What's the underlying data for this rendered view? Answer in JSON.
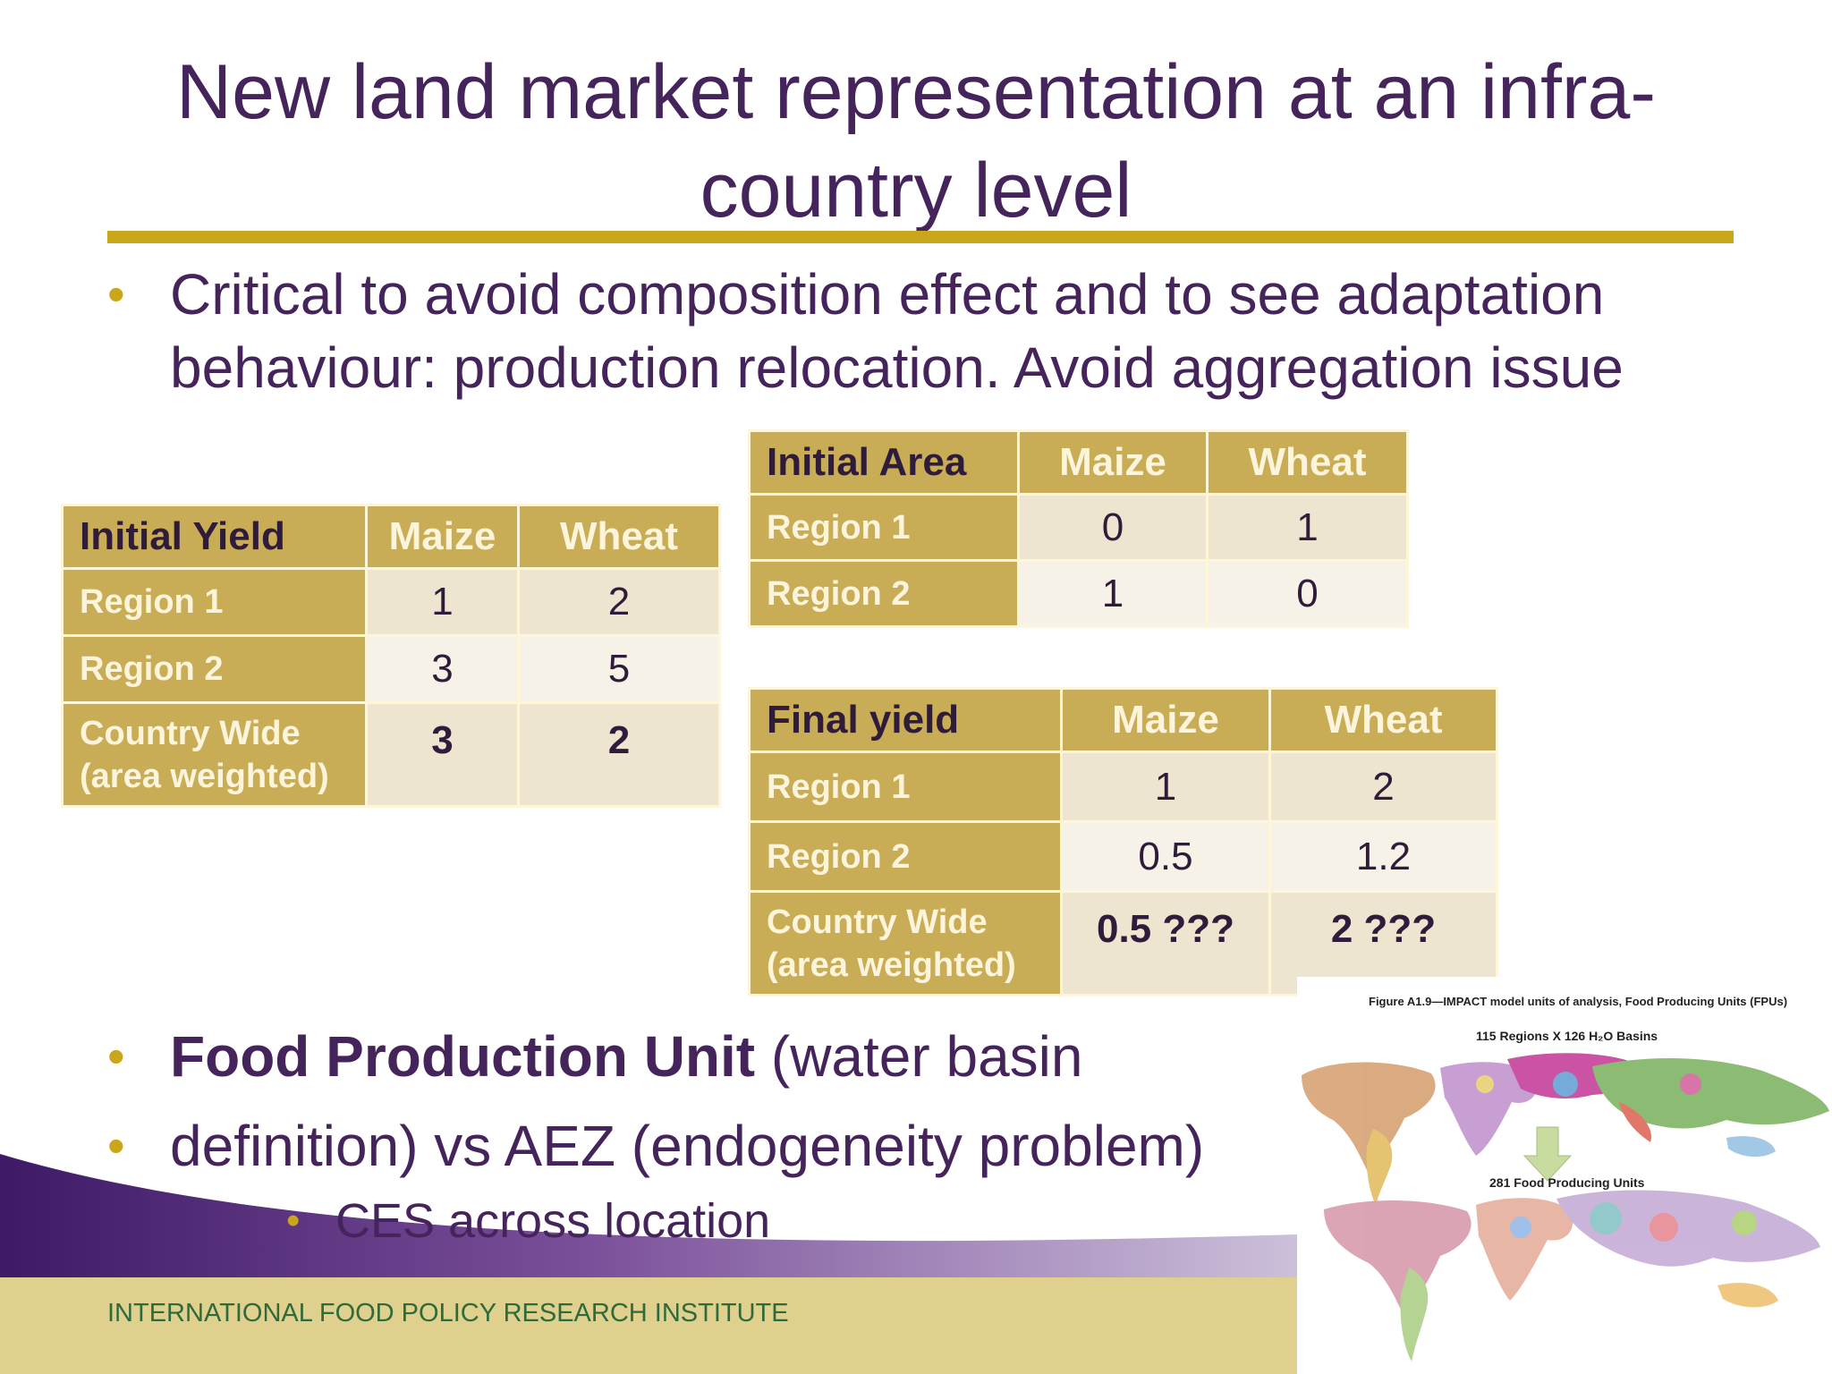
{
  "slide": {
    "title": "New land market representation at an infra-country level",
    "bullets": [
      "Critical to avoid composition effect and to see adaptation behaviour: production relocation. Avoid aggregation issue"
    ],
    "fpu_bold": "Food Production Unit",
    "fpu_rest": " (water basin",
    "fpu_line2": "definition) vs AEZ (endogeneity problem)",
    "sub_bullet": "CES across location",
    "footer": "INTERNATIONAL FOOD POLICY RESEARCH INSTITUTE",
    "colors": {
      "title": "#45245c",
      "accent": "#c9a61b",
      "table_header": "#c9ad56",
      "footer_band": "#dfd08e"
    }
  },
  "tables": {
    "initial_yield": {
      "header": [
        "Initial Yield",
        "Maize",
        "Wheat"
      ],
      "rows": [
        {
          "label": "Region 1",
          "maize": "1",
          "wheat": "2"
        },
        {
          "label": "Region 2",
          "maize": "3",
          "wheat": "5"
        },
        {
          "label": "Country Wide (area weighted)",
          "maize": "3",
          "wheat": "2"
        }
      ]
    },
    "initial_area": {
      "header": [
        "Initial Area",
        "Maize",
        "Wheat"
      ],
      "rows": [
        {
          "label": "Region 1",
          "maize": "0",
          "wheat": "1"
        },
        {
          "label": "Region 2",
          "maize": "1",
          "wheat": "0"
        }
      ]
    },
    "final_yield": {
      "header": [
        "Final yield",
        "Maize",
        "Wheat"
      ],
      "rows": [
        {
          "label": "Region 1",
          "maize": "1",
          "wheat": "2"
        },
        {
          "label": "Region 2",
          "maize": "0.5",
          "wheat": "1.2"
        },
        {
          "label": "Country Wide (area weighted)",
          "maize": "0.5 ???",
          "wheat": "2 ???"
        }
      ]
    }
  },
  "figure": {
    "caption": "Figure A1.9—IMPACT model units of analysis, Food Producing Units (FPUs)",
    "top_label": "115 Regions  X  126 H₂O Basins",
    "bottom_label": "281 Food Producing Units"
  }
}
